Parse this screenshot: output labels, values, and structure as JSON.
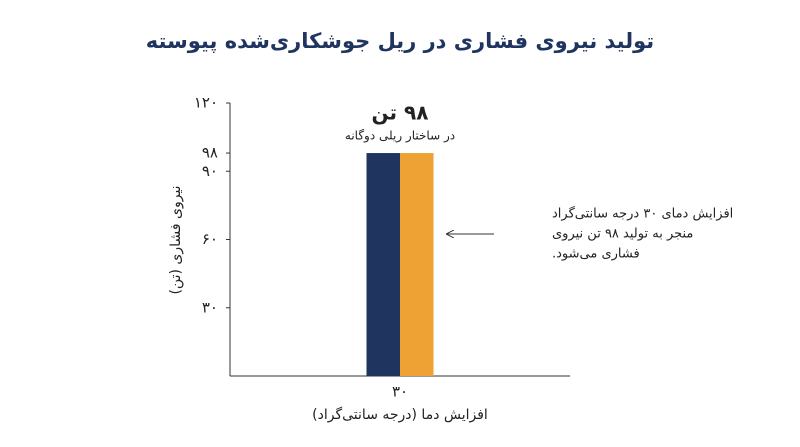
{
  "chart_data": {
    "type": "bar",
    "title": "تولید نیروی فشاری در ریل جوشکاری‌شده پیوسته",
    "y_label": "نیروی فشاری (تن)",
    "x_label": "افزایش دما (درجه سانتی‌گراد)",
    "categories": [
      "۳۰"
    ],
    "series": [
      {
        "color": "#1f3560",
        "values": [
          98
        ],
        "value_labels": [
          "۹۸ تن"
        ]
      },
      {
        "color": "#eea233",
        "values": [
          98
        ]
      }
    ],
    "ylim": [
      0,
      120
    ],
    "yticks": [
      {
        "value": 30,
        "label": "۳۰"
      },
      {
        "value": 60,
        "label": "۶۰"
      },
      {
        "value": 90,
        "label": "۹۰"
      },
      {
        "value": 98,
        "label": "۹۸"
      },
      {
        "value": 120,
        "label": "۱۲۰"
      }
    ],
    "grid": false,
    "annotations": [
      "در ساختار ریلی دوگانه",
      "افزایش دمای ۳۰ درجه سانتی‌گراد",
      "منجر به تولید ۹۸ تن نیروی",
      "فشاری می‌شود."
    ]
  }
}
